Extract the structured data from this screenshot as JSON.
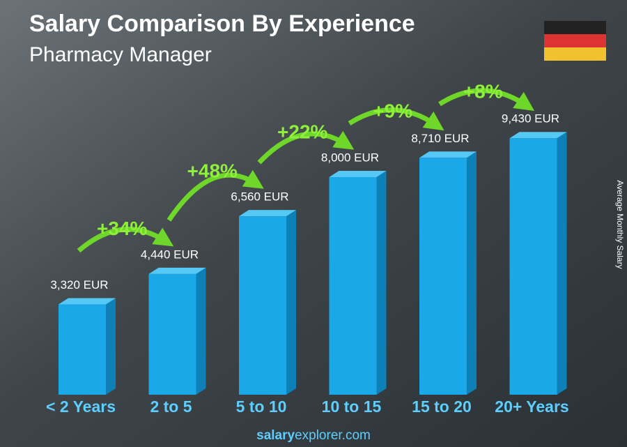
{
  "chart_data": {
    "type": "bar",
    "title": "Salary Comparison By Experience",
    "subtitle": "Pharmacy Manager",
    "y_label": "Average Monthly Salary",
    "categories": [
      "< 2 Years",
      "2 to 5",
      "5 to 10",
      "10 to 15",
      "15 to 20",
      "20+ Years"
    ],
    "values": [
      3320,
      4440,
      6560,
      8000,
      8710,
      9430
    ],
    "value_labels": [
      "3,320 EUR",
      "4,440 EUR",
      "6,560 EUR",
      "8,000 EUR",
      "8,710 EUR",
      "9,430 EUR"
    ],
    "changes": [
      "+34%",
      "+48%",
      "+22%",
      "+9%",
      "+8%"
    ],
    "color": "#1ba8e8",
    "footer": {
      "brand": "salary",
      "domain": "explorer.com"
    }
  }
}
